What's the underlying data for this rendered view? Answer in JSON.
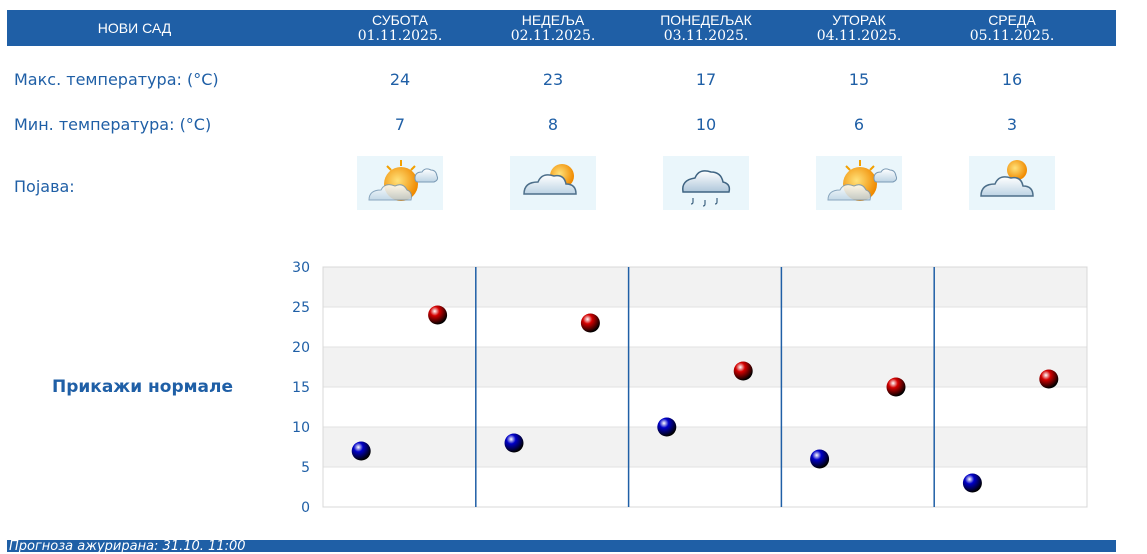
{
  "header": {
    "city": "НОВИ САД",
    "days": [
      {
        "day": "СУБОТА",
        "date": "01.11.2025."
      },
      {
        "day": "НЕДЕЉА",
        "date": "02.11.2025."
      },
      {
        "day": "ПОНЕДЕЉАК",
        "date": "03.11.2025."
      },
      {
        "day": "УТОРАК",
        "date": "04.11.2025."
      },
      {
        "day": "СРЕДА",
        "date": "05.11.2025."
      }
    ]
  },
  "rows": {
    "max_label": "Макс. температура: (°C)",
    "min_label": "Мин. температура: (°C)",
    "weather_label": "Појава:",
    "max": [
      "24",
      "23",
      "17",
      "15",
      "16"
    ],
    "min": [
      "7",
      "8",
      "10",
      "6",
      "3"
    ],
    "icons": [
      "sun-behind-cloud-icon",
      "partly-cloudy-icon",
      "cloud-drizzle-icon",
      "sun-behind-cloud-icon",
      "partly-cloudy-icon"
    ]
  },
  "normals_button": "Прикажи нормале",
  "footer": {
    "text": "Прогноза ажурирана:  31.10. 11:00"
  },
  "colors": {
    "accent": "#1f5fa6",
    "max_marker": "#d40000",
    "min_marker": "#0000c8",
    "band": "#f2f2f2"
  },
  "chart_data": {
    "type": "scatter",
    "categories": [
      "01.11.2025.",
      "02.11.2025.",
      "03.11.2025.",
      "04.11.2025.",
      "05.11.2025."
    ],
    "series": [
      {
        "values": [
          7,
          8,
          10,
          6,
          3
        ]
      },
      {
        "values": [
          24,
          23,
          17,
          15,
          16
        ]
      }
    ],
    "yticks": [
      "0",
      "5",
      "10",
      "15",
      "20",
      "25",
      "30"
    ],
    "ylim": [
      0,
      30
    ],
    "grid": true
  }
}
